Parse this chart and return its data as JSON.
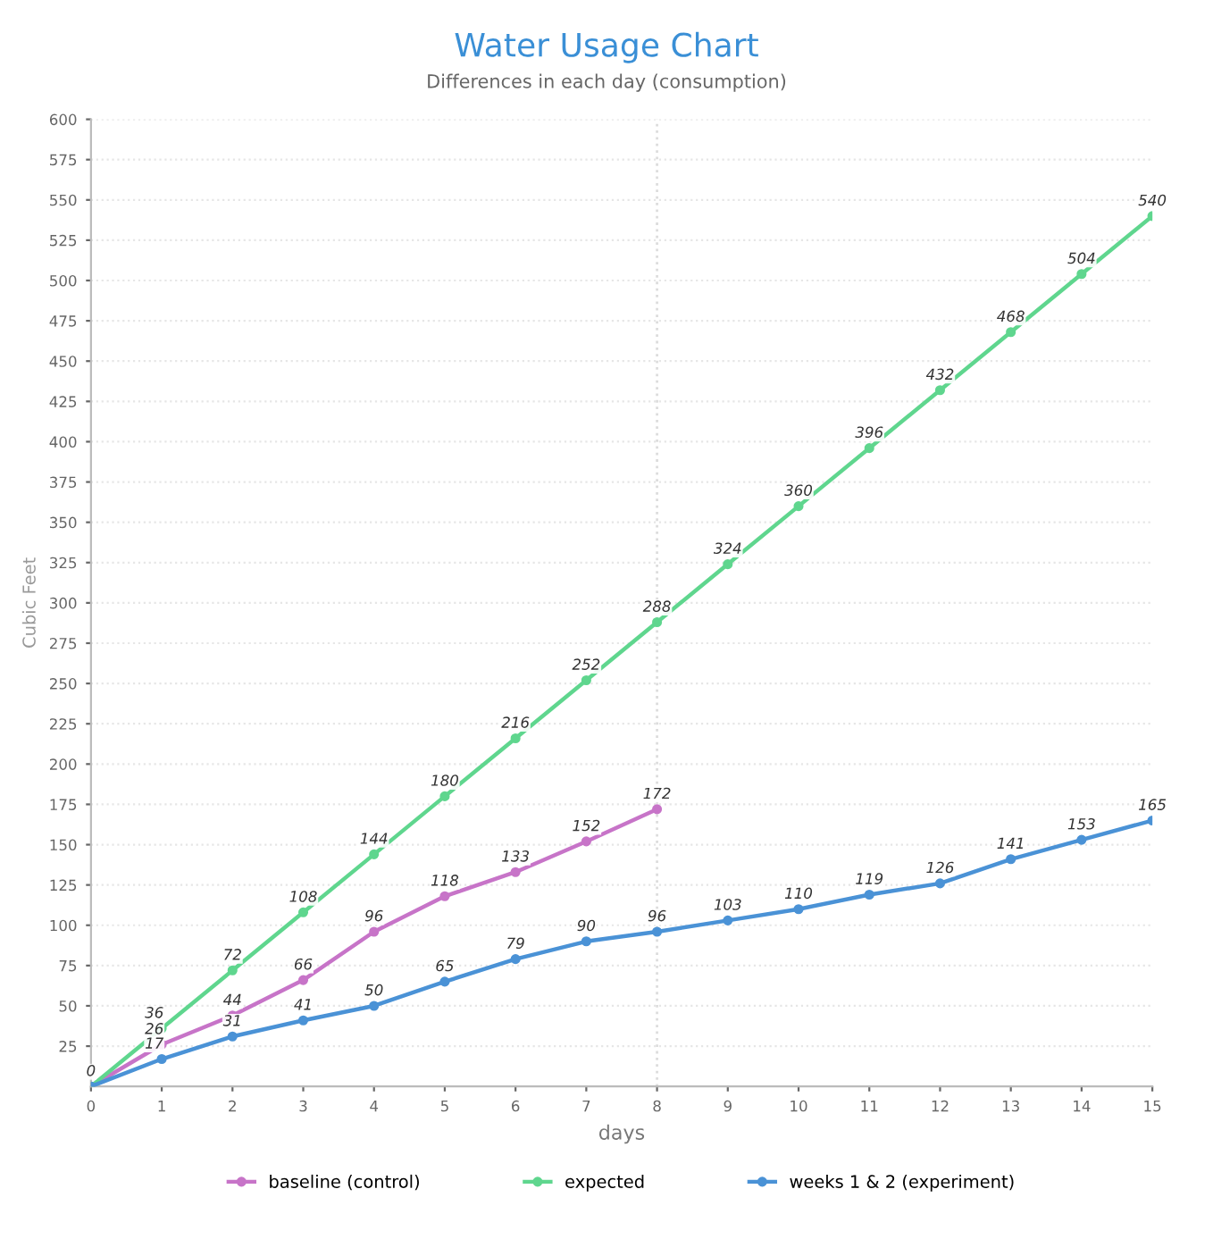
{
  "chart_data": {
    "type": "line",
    "title": "Water Usage Chart",
    "subtitle": "Differences in each day (consumption)",
    "xlabel": "days",
    "ylabel": "Cubic Feet",
    "x": [
      0,
      1,
      2,
      3,
      4,
      5,
      6,
      7,
      8,
      9,
      10,
      11,
      12,
      13,
      14,
      15
    ],
    "series": [
      {
        "name": "baseline (control)",
        "color": "#c774c8",
        "values": [
          0,
          26,
          44,
          66,
          96,
          118,
          133,
          152,
          172,
          null,
          null,
          null,
          null,
          null,
          null,
          null
        ],
        "value_labels": [
          "0",
          "26",
          "44",
          "66",
          "96",
          "118",
          "133",
          "152",
          "172",
          null,
          null,
          null,
          null,
          null,
          null,
          null
        ]
      },
      {
        "name": "expected",
        "color": "#5fd68e",
        "values": [
          0,
          36,
          72,
          108,
          144,
          180,
          216,
          252,
          288,
          324,
          360,
          396,
          432,
          468,
          504,
          540
        ],
        "value_labels": [
          null,
          "36",
          "72",
          "108",
          "144",
          "180",
          "216",
          "252",
          "288",
          "324",
          "360",
          "396",
          "432",
          "468",
          "504",
          "540"
        ]
      },
      {
        "name": "weeks 1 & 2 (experiment)",
        "color": "#4a92d6",
        "values": [
          0,
          17,
          31,
          41,
          50,
          65,
          79,
          90,
          96,
          103,
          110,
          119,
          126,
          141,
          153,
          165
        ],
        "value_labels": [
          null,
          "17",
          "31",
          "41",
          "50",
          "65",
          "79",
          "90",
          "96",
          "103",
          "110",
          "119",
          "126",
          "141",
          "153",
          "165"
        ]
      }
    ],
    "xlim": [
      0,
      15
    ],
    "xticks": [
      0,
      1,
      2,
      3,
      4,
      5,
      6,
      7,
      8,
      9,
      10,
      11,
      12,
      13,
      14,
      15
    ],
    "ylim": [
      0,
      600
    ],
    "yticks": [
      25,
      50,
      75,
      100,
      125,
      150,
      175,
      200,
      225,
      250,
      275,
      300,
      325,
      350,
      375,
      400,
      425,
      450,
      475,
      500,
      525,
      550,
      575,
      600
    ],
    "ref_lines": [
      {
        "axis": "x",
        "value": 8,
        "color": "#dddddd",
        "line_style": "dotted"
      }
    ],
    "grid": "y",
    "legend": "bottom",
    "marker": "circle",
    "line_style": "solid"
  }
}
